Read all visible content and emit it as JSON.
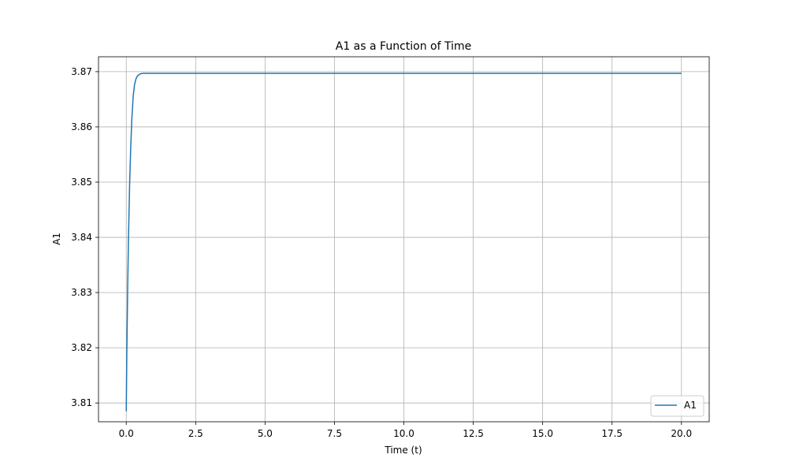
{
  "chart_data": {
    "type": "line",
    "title": "A1 as a Function of Time",
    "xlabel": "Time (t)",
    "ylabel": "A1",
    "xlim": [
      -1.0,
      21.0
    ],
    "ylim": [
      3.8066,
      3.8727
    ],
    "xticks": [
      0.0,
      2.5,
      5.0,
      7.5,
      10.0,
      12.5,
      15.0,
      17.5,
      20.0
    ],
    "xtick_labels": [
      "0.0",
      "2.5",
      "5.0",
      "7.5",
      "10.0",
      "12.5",
      "15.0",
      "17.5",
      "20.0"
    ],
    "yticks": [
      3.81,
      3.82,
      3.83,
      3.84,
      3.85,
      3.86,
      3.87
    ],
    "ytick_labels": [
      "3.81",
      "3.82",
      "3.83",
      "3.84",
      "3.85",
      "3.86",
      "3.87"
    ],
    "grid": true,
    "legend_position": "lower-right",
    "series": [
      {
        "name": "A1",
        "color": "#1f77b4",
        "x": [
          0.0,
          0.02,
          0.05,
          0.08,
          0.12,
          0.16,
          0.2,
          0.25,
          0.3,
          0.35,
          0.4,
          0.5,
          0.6,
          0.7,
          0.8,
          1.0,
          1.5,
          2.0,
          5.0,
          10.0,
          15.0,
          20.0
        ],
        "y": [
          3.8085,
          3.8188,
          3.8306,
          3.8399,
          3.8493,
          3.8562,
          3.8613,
          3.8656,
          3.8677,
          3.8687,
          3.8692,
          3.8696,
          3.8697,
          3.8697,
          3.8697,
          3.8697,
          3.8697,
          3.8697,
          3.8697,
          3.8697,
          3.8697,
          3.8697
        ]
      }
    ]
  }
}
